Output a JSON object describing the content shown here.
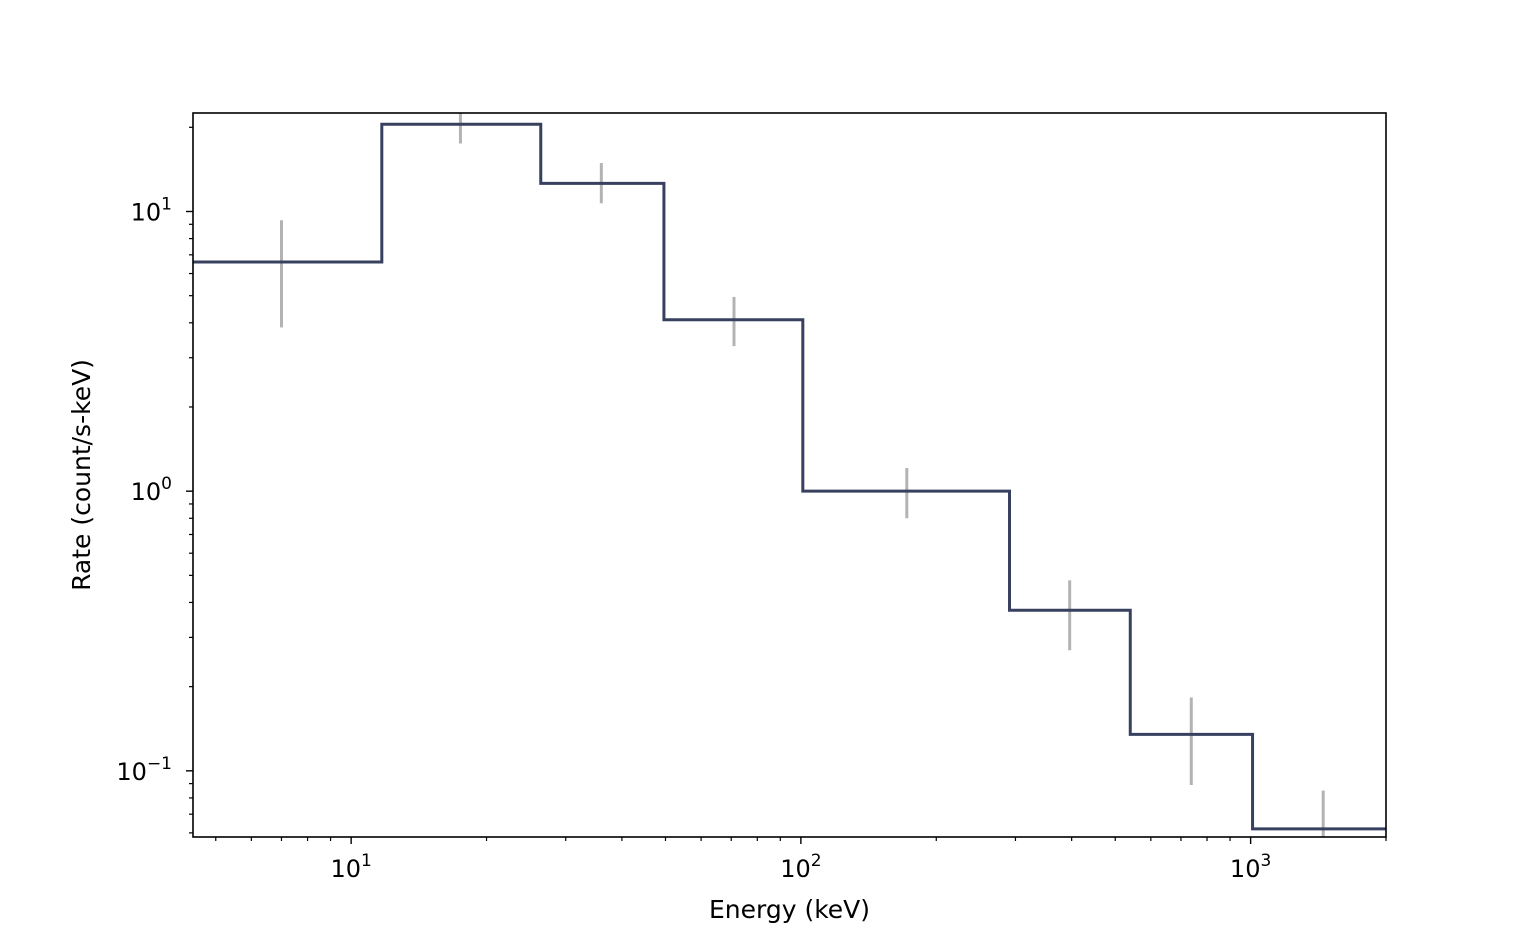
{
  "chart_data": {
    "type": "line",
    "drawstyle": "steps",
    "xlabel": "Energy (keV)",
    "ylabel": "Rate (count/s-keV)",
    "xscale": "log",
    "yscale": "log",
    "xlim": [
      4.45,
      2000
    ],
    "ylim": [
      0.058,
      22.5
    ],
    "grid": false,
    "x_ticks": [
      {
        "base": "10",
        "exp": "1",
        "value": 10
      },
      {
        "base": "10",
        "exp": "2",
        "value": 100
      },
      {
        "base": "10",
        "exp": "3",
        "value": 1000
      }
    ],
    "y_ticks": [
      {
        "base": "10",
        "exp": "−1",
        "value": 0.1
      },
      {
        "base": "10",
        "exp": "0",
        "value": 1
      },
      {
        "base": "10",
        "exp": "1",
        "value": 10
      }
    ],
    "series": [
      {
        "color": "#37415f",
        "bins": [
          {
            "lo": 4.45,
            "hi": 11.7,
            "value": 6.6
          },
          {
            "lo": 11.7,
            "hi": 26.4,
            "value": 20.5
          },
          {
            "lo": 26.4,
            "hi": 49.6,
            "value": 12.6
          },
          {
            "lo": 49.6,
            "hi": 101,
            "value": 4.1
          },
          {
            "lo": 101,
            "hi": 291,
            "value": 1.0
          },
          {
            "lo": 291,
            "hi": 540,
            "value": 0.375
          },
          {
            "lo": 540,
            "hi": 1010,
            "value": 0.135
          },
          {
            "lo": 1010,
            "hi": 2000,
            "value": 0.062
          }
        ]
      }
    ],
    "error_bars": {
      "color": "#b3b3b3",
      "points": [
        {
          "x": 7.0,
          "low": 3.85,
          "high": 9.3
        },
        {
          "x": 17.5,
          "low": 17.5,
          "high": 23.5
        },
        {
          "x": 36.0,
          "low": 10.7,
          "high": 14.9
        },
        {
          "x": 71.0,
          "low": 3.3,
          "high": 4.95
        },
        {
          "x": 172,
          "low": 0.8,
          "high": 1.21
        },
        {
          "x": 396,
          "low": 0.27,
          "high": 0.48
        },
        {
          "x": 738,
          "low": 0.089,
          "high": 0.183
        },
        {
          "x": 1450,
          "low": 0.058,
          "high": 0.085
        }
      ]
    }
  }
}
